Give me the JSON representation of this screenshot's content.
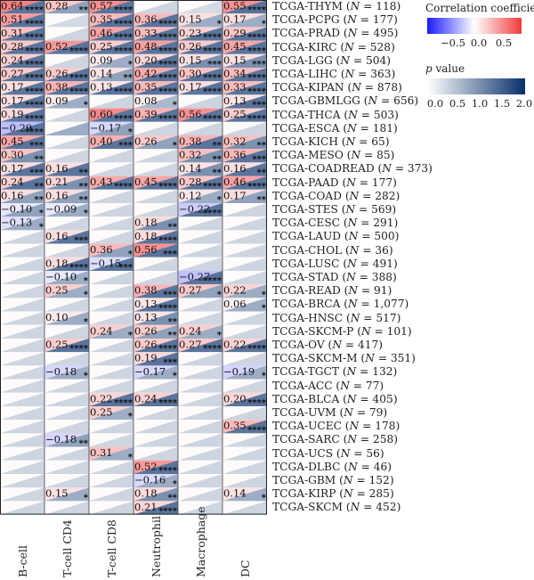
{
  "chart_data": {
    "type": "heatmap",
    "columns": [
      "B-cell",
      "T-cell CD4",
      "T-cell CD8",
      "Neutrophil",
      "Macrophage",
      "DC"
    ],
    "rows": [
      {
        "label": "TCGA-THYM",
        "n": "118",
        "r": [
          0.64,
          0.28,
          0.57,
          null,
          null,
          0.55
        ],
        "p": [
          3.5,
          1.2,
          3.0,
          0.3,
          0.2,
          3.0
        ],
        "stars": [
          "****",
          "**",
          "****",
          "",
          "",
          "****"
        ]
      },
      {
        "label": "TCGA-PCPG",
        "n": "177",
        "r": [
          0.51,
          null,
          0.35,
          0.36,
          0.15,
          0.17
        ],
        "p": [
          2.5,
          0.2,
          2.0,
          2.0,
          1.0,
          1.0
        ],
        "stars": [
          "****",
          "",
          "****",
          "****",
          "*",
          "*"
        ]
      },
      {
        "label": "TCGA-PRAD",
        "n": "495",
        "r": [
          0.31,
          null,
          0.46,
          0.33,
          0.23,
          0.29
        ],
        "p": [
          2.5,
          0.3,
          3.0,
          2.5,
          2.0,
          2.5
        ],
        "stars": [
          "****",
          "",
          "****",
          "****",
          "****",
          "****"
        ]
      },
      {
        "label": "TCGA-KIRC",
        "n": "528",
        "r": [
          0.28,
          0.52,
          0.25,
          0.48,
          0.26,
          0.45
        ],
        "p": [
          2.5,
          3.0,
          2.5,
          3.0,
          2.5,
          3.0
        ],
        "stars": [
          "****",
          "****",
          "****",
          "****",
          "****",
          "****"
        ]
      },
      {
        "label": "TCGA-LGG",
        "n": "504",
        "r": [
          0.24,
          null,
          0.09,
          0.2,
          0.15,
          0.15
        ],
        "p": [
          2.5,
          0.3,
          1.0,
          2.0,
          1.5,
          1.5
        ],
        "stars": [
          "****",
          "",
          "*",
          "****",
          "***",
          "***"
        ]
      },
      {
        "label": "TCGA-LIHC",
        "n": "363",
        "r": [
          0.27,
          0.26,
          0.14,
          0.42,
          0.3,
          0.34
        ],
        "p": [
          2.5,
          2.5,
          1.2,
          3.0,
          2.5,
          2.5
        ],
        "stars": [
          "****",
          "****",
          "**",
          "****",
          "****",
          "****"
        ]
      },
      {
        "label": "TCGA-KIPAN",
        "n": "878",
        "r": [
          0.17,
          0.38,
          0.13,
          0.35,
          0.17,
          0.33
        ],
        "p": [
          2.5,
          3.0,
          2.0,
          3.0,
          2.5,
          3.0
        ],
        "stars": [
          "****",
          "****",
          "****",
          "****",
          "****",
          "****"
        ]
      },
      {
        "label": "TCGA-GBMLGG",
        "n": "656",
        "r": [
          0.17,
          0.09,
          null,
          0.08,
          null,
          0.13
        ],
        "p": [
          2.5,
          1.0,
          0.3,
          0.8,
          0.3,
          2.0
        ],
        "stars": [
          "****",
          "*",
          "",
          "*",
          "",
          "***"
        ]
      },
      {
        "label": "TCGA-THCA",
        "n": "503",
        "r": [
          0.19,
          null,
          0.6,
          0.39,
          0.56,
          0.25
        ],
        "p": [
          2.5,
          0.3,
          3.5,
          3.0,
          3.5,
          3.0
        ],
        "stars": [
          "****",
          "",
          "****",
          "****",
          "****",
          "****"
        ]
      },
      {
        "label": "TCGA-ESCA",
        "n": "181",
        "r": [
          -0.29,
          null,
          -0.17,
          null,
          null,
          null
        ],
        "p": [
          2.5,
          1.0,
          1.2,
          0.3,
          0.3,
          0.3
        ],
        "stars": [
          "****",
          "",
          "*",
          "",
          "",
          ""
        ]
      },
      {
        "label": "TCGA-KICH",
        "n": "65",
        "r": [
          0.45,
          null,
          0.4,
          0.26,
          0.38,
          0.32
        ],
        "p": [
          2.5,
          0.3,
          2.5,
          1.2,
          2.0,
          1.5
        ],
        "stars": [
          "***",
          "",
          "***",
          "*",
          "**",
          "**"
        ]
      },
      {
        "label": "TCGA-MESO",
        "n": "85",
        "r": [
          0.3,
          null,
          null,
          null,
          0.32,
          0.36
        ],
        "p": [
          1.5,
          0.3,
          0.3,
          0.3,
          1.5,
          2.0
        ],
        "stars": [
          "**",
          "",
          "",
          "",
          "**",
          "***"
        ]
      },
      {
        "label": "TCGA-COADREAD",
        "n": "373",
        "r": [
          0.17,
          0.16,
          null,
          null,
          0.14,
          0.16
        ],
        "p": [
          2.0,
          2.0,
          0.3,
          0.3,
          1.5,
          2.0
        ],
        "stars": [
          "***",
          "**",
          "",
          "",
          "**",
          "**"
        ]
      },
      {
        "label": "TCGA-PAAD",
        "n": "177",
        "r": [
          0.24,
          0.21,
          0.43,
          0.45,
          0.28,
          0.46
        ],
        "p": [
          2.0,
          1.5,
          3.0,
          3.0,
          2.5,
          3.0
        ],
        "stars": [
          "**",
          "**",
          "****",
          "****",
          "****",
          "****"
        ]
      },
      {
        "label": "TCGA-COAD",
        "n": "282",
        "r": [
          0.16,
          0.16,
          null,
          null,
          0.12,
          0.17
        ],
        "p": [
          1.2,
          1.2,
          0.3,
          0.3,
          1.0,
          1.2
        ],
        "stars": [
          "**",
          "**",
          "",
          "",
          "*",
          "**"
        ]
      },
      {
        "label": "TCGA-STES",
        "n": "569",
        "r": [
          -0.1,
          -0.09,
          null,
          null,
          -0.22,
          null
        ],
        "p": [
          1.2,
          1.0,
          0.3,
          0.3,
          3.0,
          0.3
        ],
        "stars": [
          "*",
          "*",
          "",
          "",
          "****",
          ""
        ]
      },
      {
        "label": "TCGA-CESC",
        "n": "291",
        "r": [
          -0.13,
          null,
          null,
          0.18,
          null,
          null
        ],
        "p": [
          1.0,
          0.3,
          0.3,
          1.5,
          0.3,
          0.3
        ],
        "stars": [
          "*",
          "",
          "",
          "**",
          "",
          ""
        ]
      },
      {
        "label": "TCGA-LAUD",
        "n": "500",
        "r": [
          null,
          0.16,
          null,
          0.18,
          null,
          null
        ],
        "p": [
          0.3,
          2.0,
          0.3,
          2.5,
          0.3,
          0.3
        ],
        "stars": [
          "",
          "***",
          "",
          "****",
          "",
          ""
        ]
      },
      {
        "label": "TCGA-CHOL",
        "n": "36",
        "r": [
          null,
          null,
          0.36,
          0.56,
          null,
          null
        ],
        "p": [
          0.3,
          0.3,
          1.2,
          2.5,
          0.3,
          0.3
        ],
        "stars": [
          "",
          "",
          "*",
          "***",
          "",
          ""
        ]
      },
      {
        "label": "TCGA-LUSC",
        "n": "491",
        "r": [
          null,
          0.18,
          -0.15,
          null,
          null,
          null
        ],
        "p": [
          0.3,
          2.5,
          2.0,
          0.3,
          0.3,
          0.3
        ],
        "stars": [
          "",
          "****",
          "***",
          "",
          "",
          ""
        ]
      },
      {
        "label": "TCGA-STAD",
        "n": "388",
        "r": [
          null,
          -0.1,
          null,
          null,
          -0.27,
          null
        ],
        "p": [
          0.3,
          1.0,
          0.3,
          0.3,
          3.0,
          0.3
        ],
        "stars": [
          "",
          "*",
          "",
          "",
          "****",
          ""
        ]
      },
      {
        "label": "TCGA-READ",
        "n": "91",
        "r": [
          null,
          0.25,
          null,
          0.38,
          0.27,
          0.22
        ],
        "p": [
          0.3,
          1.0,
          0.3,
          2.0,
          1.2,
          1.0
        ],
        "stars": [
          "",
          "*",
          "",
          "***",
          "*",
          "*"
        ]
      },
      {
        "label": "TCGA-BRCA",
        "n": "1,077",
        "r": [
          null,
          null,
          null,
          0.13,
          null,
          0.06
        ],
        "p": [
          0.3,
          0.3,
          0.3,
          2.5,
          0.3,
          1.0
        ],
        "stars": [
          "",
          "",
          "",
          "****",
          "",
          "*"
        ]
      },
      {
        "label": "TCGA-HNSC",
        "n": "517",
        "r": [
          null,
          0.1,
          null,
          0.13,
          null,
          null
        ],
        "p": [
          0.3,
          1.0,
          0.3,
          1.5,
          0.3,
          0.3
        ],
        "stars": [
          "",
          "*",
          "",
          "**",
          "",
          ""
        ]
      },
      {
        "label": "TCGA-SKCM-P",
        "n": "101",
        "r": [
          null,
          null,
          0.24,
          0.26,
          0.24,
          null
        ],
        "p": [
          0.3,
          0.3,
          1.0,
          1.2,
          1.0,
          0.3
        ],
        "stars": [
          "",
          "",
          "*",
          "**",
          "*",
          ""
        ]
      },
      {
        "label": "TCGA-OV",
        "n": "417",
        "r": [
          null,
          0.25,
          null,
          0.26,
          0.27,
          0.22
        ],
        "p": [
          0.3,
          3.0,
          0.3,
          3.0,
          3.0,
          3.0
        ],
        "stars": [
          "",
          "****",
          "",
          "****",
          "****",
          "****"
        ]
      },
      {
        "label": "TCGA-SKCM-M",
        "n": "351",
        "r": [
          null,
          null,
          null,
          0.19,
          null,
          null
        ],
        "p": [
          0.3,
          0.3,
          0.3,
          2.0,
          0.3,
          0.3
        ],
        "stars": [
          "",
          "",
          "",
          "***",
          "",
          ""
        ]
      },
      {
        "label": "TCGA-TGCT",
        "n": "132",
        "r": [
          null,
          -0.18,
          null,
          -0.17,
          null,
          -0.19
        ],
        "p": [
          0.3,
          1.0,
          0.3,
          1.0,
          0.3,
          1.0
        ],
        "stars": [
          "",
          "*",
          "",
          "*",
          "",
          "*"
        ]
      },
      {
        "label": "TCGA-ACC",
        "n": "77",
        "r": [
          null,
          null,
          null,
          null,
          null,
          null
        ],
        "p": [
          0.3,
          0.3,
          0.3,
          0.3,
          0.3,
          0.3
        ],
        "stars": [
          "",
          "",
          "",
          "",
          "",
          ""
        ]
      },
      {
        "label": "TCGA-BLCA",
        "n": "405",
        "r": [
          null,
          null,
          0.22,
          0.24,
          null,
          0.2
        ],
        "p": [
          0.3,
          0.3,
          2.5,
          2.5,
          0.3,
          2.5
        ],
        "stars": [
          "",
          "",
          "****",
          "****",
          "",
          "****"
        ]
      },
      {
        "label": "TCGA-UVM",
        "n": "79",
        "r": [
          null,
          null,
          0.25,
          null,
          null,
          null
        ],
        "p": [
          0.3,
          0.3,
          1.0,
          0.3,
          0.3,
          0.3
        ],
        "stars": [
          "",
          "",
          "*",
          "",
          "",
          ""
        ]
      },
      {
        "label": "TCGA-UCEC",
        "n": "178",
        "r": [
          null,
          null,
          null,
          null,
          null,
          0.35
        ],
        "p": [
          0.3,
          0.3,
          0.3,
          0.3,
          0.3,
          2.5
        ],
        "stars": [
          "",
          "",
          "",
          "",
          "",
          "****"
        ]
      },
      {
        "label": "TCGA-SARC",
        "n": "258",
        "r": [
          null,
          -0.18,
          null,
          null,
          null,
          null
        ],
        "p": [
          0.3,
          1.2,
          0.3,
          0.3,
          0.3,
          0.3
        ],
        "stars": [
          "",
          "**",
          "",
          "",
          "",
          ""
        ]
      },
      {
        "label": "TCGA-UCS",
        "n": "56",
        "r": [
          null,
          null,
          0.31,
          null,
          null,
          null
        ],
        "p": [
          0.3,
          0.3,
          1.0,
          0.3,
          0.3,
          0.3
        ],
        "stars": [
          "",
          "",
          "*",
          "",
          "",
          ""
        ]
      },
      {
        "label": "TCGA-DLBC",
        "n": "46",
        "r": [
          null,
          null,
          null,
          0.52,
          null,
          null
        ],
        "p": [
          0.3,
          0.3,
          0.3,
          2.5,
          0.3,
          0.3
        ],
        "stars": [
          "",
          "",
          "",
          "****",
          "",
          ""
        ]
      },
      {
        "label": "TCGA-GBM",
        "n": "152",
        "r": [
          null,
          null,
          null,
          -0.16,
          null,
          null
        ],
        "p": [
          0.3,
          0.3,
          0.3,
          1.0,
          0.3,
          0.3
        ],
        "stars": [
          "",
          "",
          "",
          "*",
          "",
          ""
        ]
      },
      {
        "label": "TCGA-KIRP",
        "n": "285",
        "r": [
          null,
          0.15,
          null,
          0.18,
          null,
          0.14
        ],
        "p": [
          0.3,
          1.0,
          0.3,
          1.5,
          0.3,
          1.0
        ],
        "stars": [
          "",
          "*",
          "",
          "**",
          "",
          "*"
        ]
      },
      {
        "label": "TCGA-SKCM",
        "n": "452",
        "r": [
          null,
          null,
          null,
          0.21,
          null,
          null
        ],
        "p": [
          0.3,
          0.3,
          0.3,
          2.5,
          0.3,
          0.3
        ],
        "stars": [
          "",
          "",
          "",
          "****",
          "",
          ""
        ]
      }
    ],
    "n_symbol": "N",
    "legend_correlation": {
      "title": "Correlation coefficient",
      "ticks": [
        "−0.5",
        "0.0",
        "0.5"
      ],
      "range": [
        -0.9,
        0.9
      ],
      "low_color": "#1a1aff",
      "mid_color": "#ffffff",
      "high_color": "#f03a3a"
    },
    "legend_pvalue": {
      "title_italic": "p",
      "title_rest": " value",
      "ticks": [
        "0.0",
        "0.5",
        "1.0",
        "1.5",
        "2.0"
      ],
      "range": [
        0,
        2
      ],
      "low_color": "#ffffff",
      "high_color": "#08306b"
    }
  }
}
